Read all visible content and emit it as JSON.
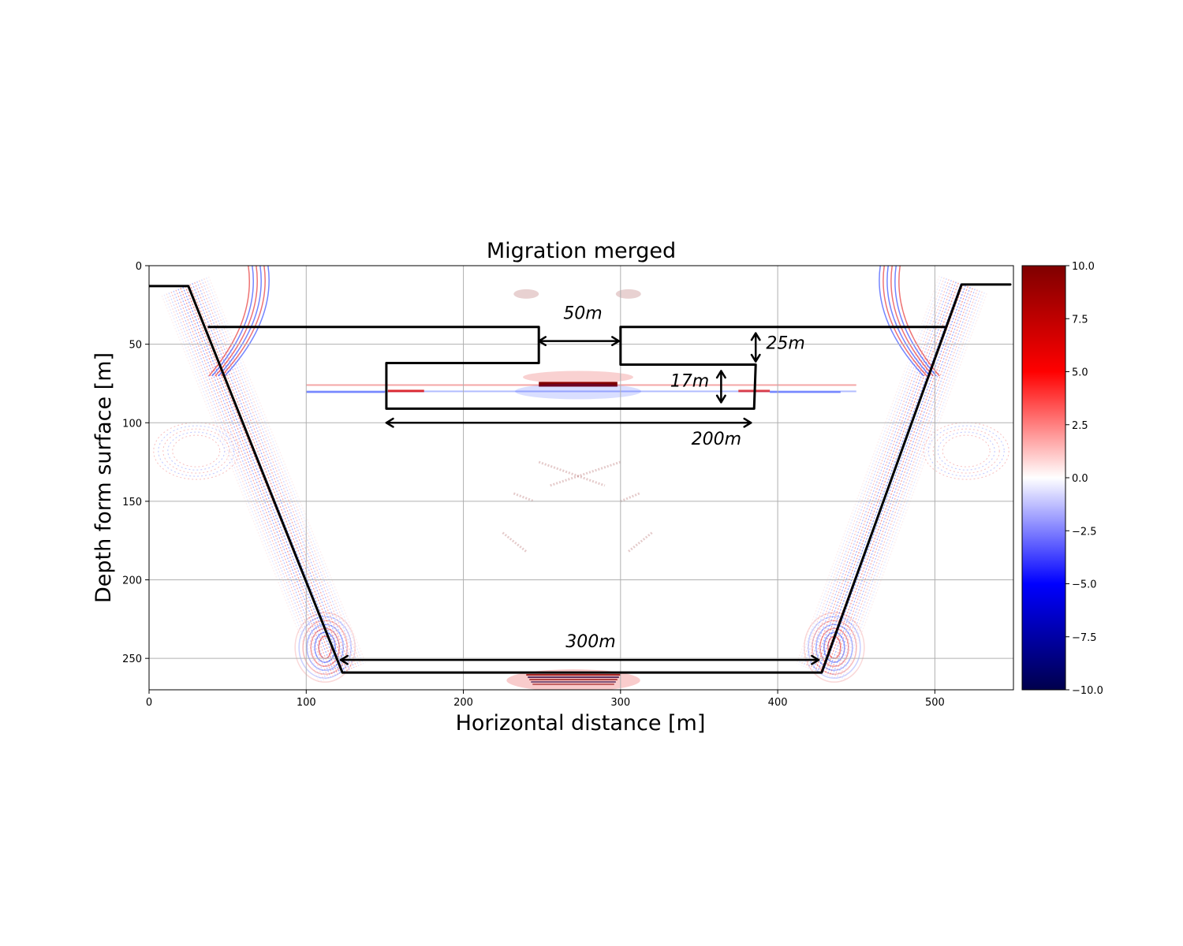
{
  "chart_data": {
    "type": "heatmap",
    "title": "Migration merged",
    "xlabel": "Horizontal distance [m]",
    "ylabel": "Depth form surface [m]",
    "xlim": [
      0,
      550
    ],
    "ylim": [
      270,
      0
    ],
    "y_inverted": true,
    "grid": true,
    "x_ticks": [
      0,
      100,
      200,
      300,
      400,
      500
    ],
    "y_ticks": [
      0,
      50,
      100,
      150,
      200,
      250
    ],
    "colormap": "seismic",
    "colorbar": {
      "vmin": -10.0,
      "vmax": 10.0,
      "ticks": [
        10.0,
        7.5,
        5.0,
        2.5,
        0.0,
        -2.5,
        -5.0,
        -7.5,
        -10.0
      ],
      "tick_labels": [
        "10.0",
        "7.5",
        "5.0",
        "2.5",
        "0.0",
        "−2.5",
        "−5.0",
        "−7.5",
        "−10.0"
      ],
      "colors": [
        "#00004c",
        "#0000ff",
        "#ffffff",
        "#ff0000",
        "#7f0000"
      ]
    },
    "reflectors": [
      {
        "name": "left dipping wall",
        "points": [
          [
            23,
            13
          ],
          [
            123,
            259
          ]
        ]
      },
      {
        "name": "right dipping wall",
        "points": [
          [
            518,
            12
          ],
          [
            427,
            259
          ]
        ]
      },
      {
        "name": "flat reflector",
        "points": [
          [
            100,
            76
          ],
          [
            450,
            76
          ]
        ]
      },
      {
        "name": "bottom reflector",
        "points": [
          [
            240,
            262
          ],
          [
            300,
            262
          ]
        ]
      }
    ],
    "annotations": {
      "labels": [
        {
          "text": "50m",
          "x": 276,
          "y": 34
        },
        {
          "text": "25m",
          "x": 405,
          "y": 53
        },
        {
          "text": "17m",
          "x": 344,
          "y": 77
        },
        {
          "text": "200m",
          "x": 361,
          "y": 114
        },
        {
          "text": "300m",
          "x": 281,
          "y": 243
        }
      ],
      "outline": [
        {
          "points": [
            [
              0,
              13
            ],
            [
              25,
              13
            ],
            [
              123,
              259
            ],
            [
              428,
              259
            ],
            [
              517,
              12
            ],
            [
              548,
              12
            ]
          ]
        },
        {
          "points": [
            [
              38,
              39
            ],
            [
              248,
              39
            ],
            [
              248,
              62
            ],
            [
              151,
              62
            ],
            [
              151,
              91
            ],
            [
              385,
              91
            ],
            [
              386,
              63
            ],
            [
              300,
              63
            ],
            [
              300,
              39
            ],
            [
              506,
              39
            ]
          ]
        }
      ],
      "arrows": [
        {
          "points": [
            [
              248,
              48
            ],
            [
              299,
              48
            ]
          ]
        },
        {
          "points": [
            [
              386,
              43
            ],
            [
              386,
              61
            ]
          ]
        },
        {
          "points": [
            [
              364,
              67
            ],
            [
              364,
              87
            ]
          ]
        },
        {
          "points": [
            [
              151,
              100
            ],
            [
              383,
              100
            ]
          ]
        },
        {
          "points": [
            [
              122,
              251
            ],
            [
              426,
              251
            ]
          ]
        }
      ]
    }
  }
}
